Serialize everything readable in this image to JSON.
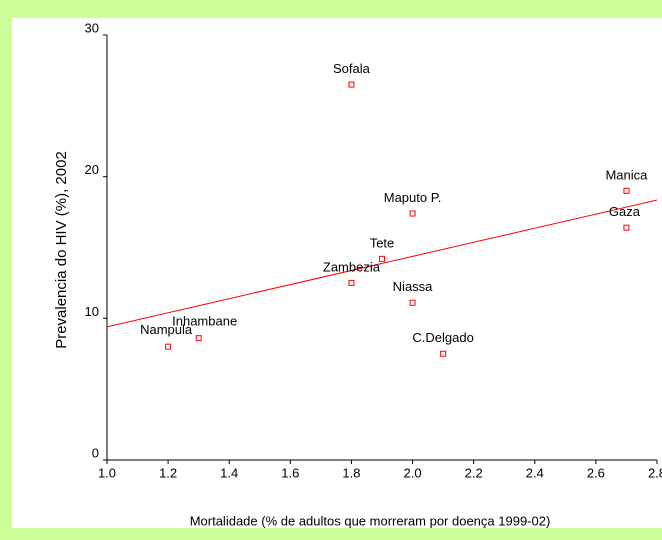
{
  "chart_data": {
    "type": "scatter",
    "x_label": "Mortalidade (% de adultos que morreram por doença 1999-02)",
    "y_label": "Prevalencia do HIV (%), 2002",
    "labels": [
      "Sofala",
      "Manica",
      "Gaza",
      "Maputo P.",
      "Tete",
      "Zambezia",
      "Niassa",
      "C.Delgado",
      "Inhambane",
      "Nampula"
    ],
    "x": [
      1.8,
      2.7,
      2.7,
      2.0,
      1.9,
      1.8,
      2.0,
      2.1,
      1.3,
      1.2
    ],
    "y": [
      26.5,
      19.0,
      16.4,
      17.4,
      14.2,
      12.5,
      11.1,
      7.5,
      8.6,
      8.0
    ],
    "color": "#ff0000",
    "trendline": {
      "x": [
        1.0,
        2.8
      ],
      "y": [
        9.4,
        18.35
      ],
      "color": "#ff0000"
    },
    "xlim": [
      1.0,
      2.8
    ],
    "ylim": [
      0,
      30
    ],
    "xticks": [
      {
        "value": 1.0,
        "label": "1.0"
      },
      1.2,
      1.4,
      1.6,
      1.8,
      {
        "value": 2.0,
        "label": "2.0"
      },
      2.2,
      2.4,
      2.6,
      2.8
    ],
    "yticks": [
      0,
      10,
      20,
      30
    ]
  }
}
